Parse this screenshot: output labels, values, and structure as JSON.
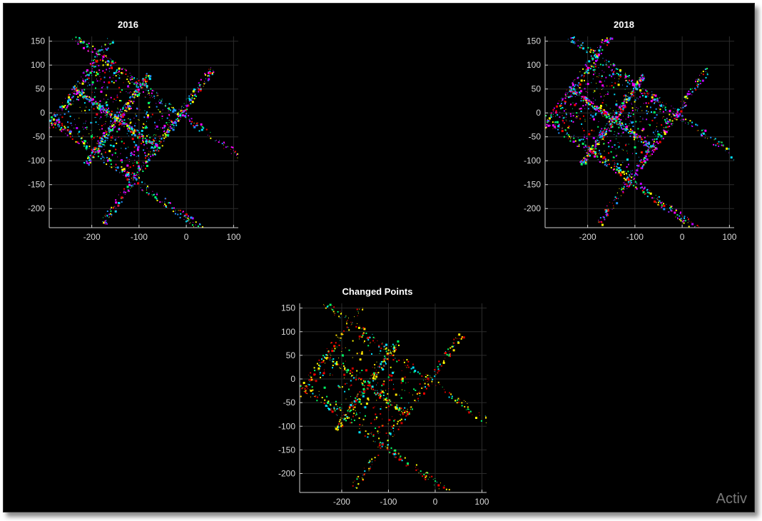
{
  "watermark": "Activ",
  "chart_data": [
    {
      "type": "scatter",
      "title": "2016",
      "xlim": [
        -290,
        110
      ],
      "ylim": [
        -240,
        160
      ],
      "xticks": [
        -200,
        -100,
        0,
        100
      ],
      "yticks": [
        150,
        100,
        50,
        0,
        -50,
        -100,
        -150,
        -200
      ],
      "grid": true,
      "colors": [
        "#ff00ff",
        "#b700ff",
        "#ff0000",
        "#00e0ff",
        "#1e90ff",
        "#00ff66",
        "#ffff00"
      ]
    },
    {
      "type": "scatter",
      "title": "2018",
      "xlim": [
        -290,
        110
      ],
      "ylim": [
        -240,
        160
      ],
      "xticks": [
        -200,
        -100,
        0,
        100
      ],
      "yticks": [
        150,
        100,
        50,
        0,
        -50,
        -100,
        -150,
        -200
      ],
      "grid": true,
      "colors": [
        "#ff00ff",
        "#b700ff",
        "#ff0000",
        "#00e0ff",
        "#1e90ff",
        "#00ff66",
        "#ffff00"
      ]
    },
    {
      "type": "scatter",
      "title": "Changed Points",
      "xlim": [
        -290,
        110
      ],
      "ylim": [
        -240,
        160
      ],
      "xticks": [
        -200,
        -100,
        0,
        100
      ],
      "yticks": [
        150,
        100,
        50,
        0,
        -50,
        -100,
        -150,
        -200
      ],
      "grid": true,
      "colors": [
        "#ff0000",
        "#cc0000",
        "#ffff00",
        "#ffe000",
        "#00ff66",
        "#00e0ff"
      ]
    }
  ]
}
